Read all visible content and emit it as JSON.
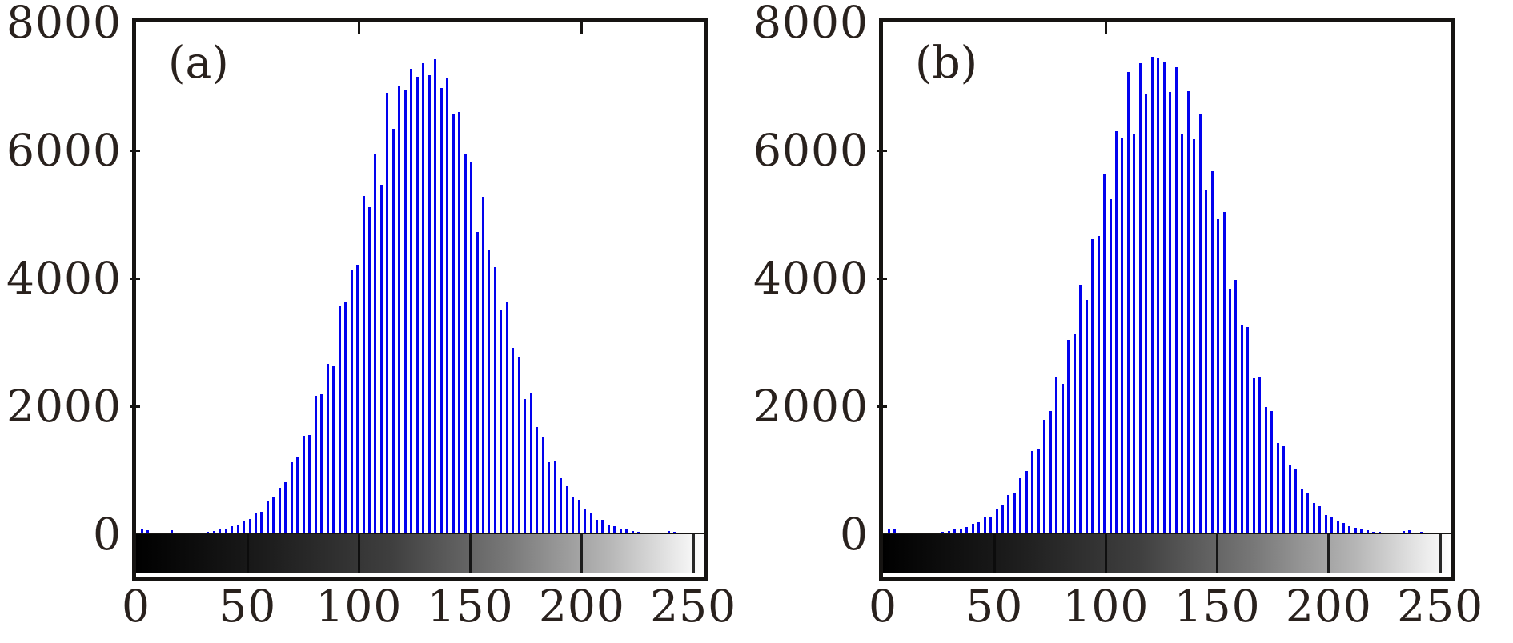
{
  "figure": {
    "background": "#ffffff",
    "bar_color": "#0202ee",
    "axis_color": "#161412",
    "text_color": "#29211d",
    "panel_labels": [
      "(a)",
      "(b)"
    ]
  },
  "chart_data": [
    {
      "type": "bar",
      "panel_label": "(a)",
      "description": "Grayscale image intensity histogram (stem-style bars) with gray-level colorbar strip below the baseline",
      "xlim": [
        0,
        255
      ],
      "ylim": [
        0,
        8000
      ],
      "x_ticks": [
        0,
        50,
        100,
        150,
        200,
        250
      ],
      "x_tick_labels": [
        "0",
        "50",
        "100",
        "150",
        "200",
        "250"
      ],
      "y_ticks": [
        0,
        2000,
        4000,
        6000,
        8000
      ],
      "y_tick_labels": [
        "0",
        "2000",
        "4000",
        "6000",
        "8000"
      ],
      "top_ticks": [
        100,
        200
      ],
      "grid": false,
      "legend": null,
      "bins": {
        "start": 0,
        "step": 2.6842,
        "count": 96
      },
      "values": [
        0,
        85,
        60,
        0,
        8,
        0,
        65,
        10,
        12,
        17,
        22,
        30,
        40,
        54,
        76,
        89,
        125,
        140,
        214,
        239,
        320,
        348,
        515,
        577,
        727,
        818,
        1127,
        1206,
        1541,
        1553,
        2162,
        2193,
        2663,
        2629,
        3561,
        3634,
        4131,
        4216,
        5282,
        5117,
        5939,
        5461,
        6896,
        6343,
        7000,
        6950,
        7280,
        7150,
        7360,
        7180,
        7430,
        6980,
        7120,
        6560,
        6600,
        5950,
        5810,
        4730,
        5280,
        4440,
        4174,
        3510,
        3640,
        2910,
        2780,
        2110,
        2200,
        1670,
        1520,
        1130,
        1140,
        870,
        744,
        570,
        540,
        390,
        340,
        230,
        220,
        150,
        126,
        84,
        77,
        53,
        41,
        29,
        26,
        16,
        14,
        55,
        38,
        25,
        0,
        18,
        0,
        0
      ],
      "colorbar": {
        "style": "grayscale",
        "from": "#000000",
        "to": "#ffffff",
        "range": [
          0,
          255
        ]
      }
    },
    {
      "type": "bar",
      "panel_label": "(b)",
      "description": "Grayscale image intensity histogram (stem-style bars) with gray-level colorbar strip below the baseline",
      "xlim": [
        0,
        255
      ],
      "ylim": [
        0,
        8000
      ],
      "x_ticks": [
        0,
        50,
        100,
        150,
        200,
        250
      ],
      "x_tick_labels": [
        "0",
        "50",
        "100",
        "150",
        "200",
        "250"
      ],
      "y_ticks": [
        0,
        2000,
        4000,
        6000,
        8000
      ],
      "y_tick_labels": [
        "0",
        "2000",
        "4000",
        "6000",
        "8000"
      ],
      "top_ticks": [
        100
      ],
      "grid": false,
      "legend": null,
      "bins": {
        "start": 0,
        "step": 2.6842,
        "count": 96
      },
      "values": [
        0,
        90,
        70,
        0,
        10,
        0,
        7,
        16,
        21,
        29,
        39,
        52,
        69,
        90,
        110,
        158,
        187,
        266,
        280,
        398,
        450,
        617,
        633,
        878,
        984,
        1306,
        1342,
        1782,
        1930,
        2460,
        2345,
        3040,
        3130,
        3900,
        3660,
        4610,
        4660,
        5630,
        5240,
        6300,
        6200,
        7230,
        6250,
        7365,
        6870,
        7460,
        7450,
        7380,
        6910,
        7300,
        6260,
        6930,
        6180,
        6560,
        5370,
        5680,
        4920,
        5040,
        3840,
        3980,
        3260,
        3240,
        2440,
        2450,
        1990,
        1920,
        1420,
        1370,
        1080,
        1010,
        695,
        650,
        490,
        440,
        300,
        275,
        200,
        177,
        120,
        104,
        75,
        64,
        40,
        34,
        23,
        19,
        13,
        45,
        60,
        30,
        40,
        0,
        20,
        0,
        0,
        0
      ],
      "colorbar": {
        "style": "grayscale",
        "from": "#000000",
        "to": "#ffffff",
        "range": [
          0,
          255
        ]
      }
    }
  ]
}
